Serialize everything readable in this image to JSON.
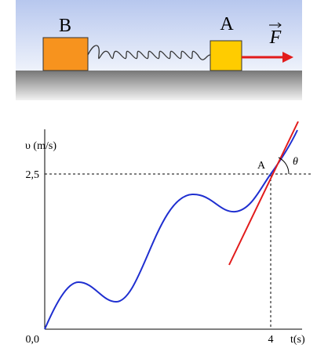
{
  "top_panel": {
    "block_b": "B",
    "block_a": "A",
    "force": "F"
  },
  "graph": {
    "y_axis_label": "υ (m/s)",
    "x_axis_label": "t(s)",
    "y_tick": "2,5",
    "origin_label": "0,0",
    "x_tick": "4",
    "point_label": "A",
    "angle_label": "θ"
  }
}
